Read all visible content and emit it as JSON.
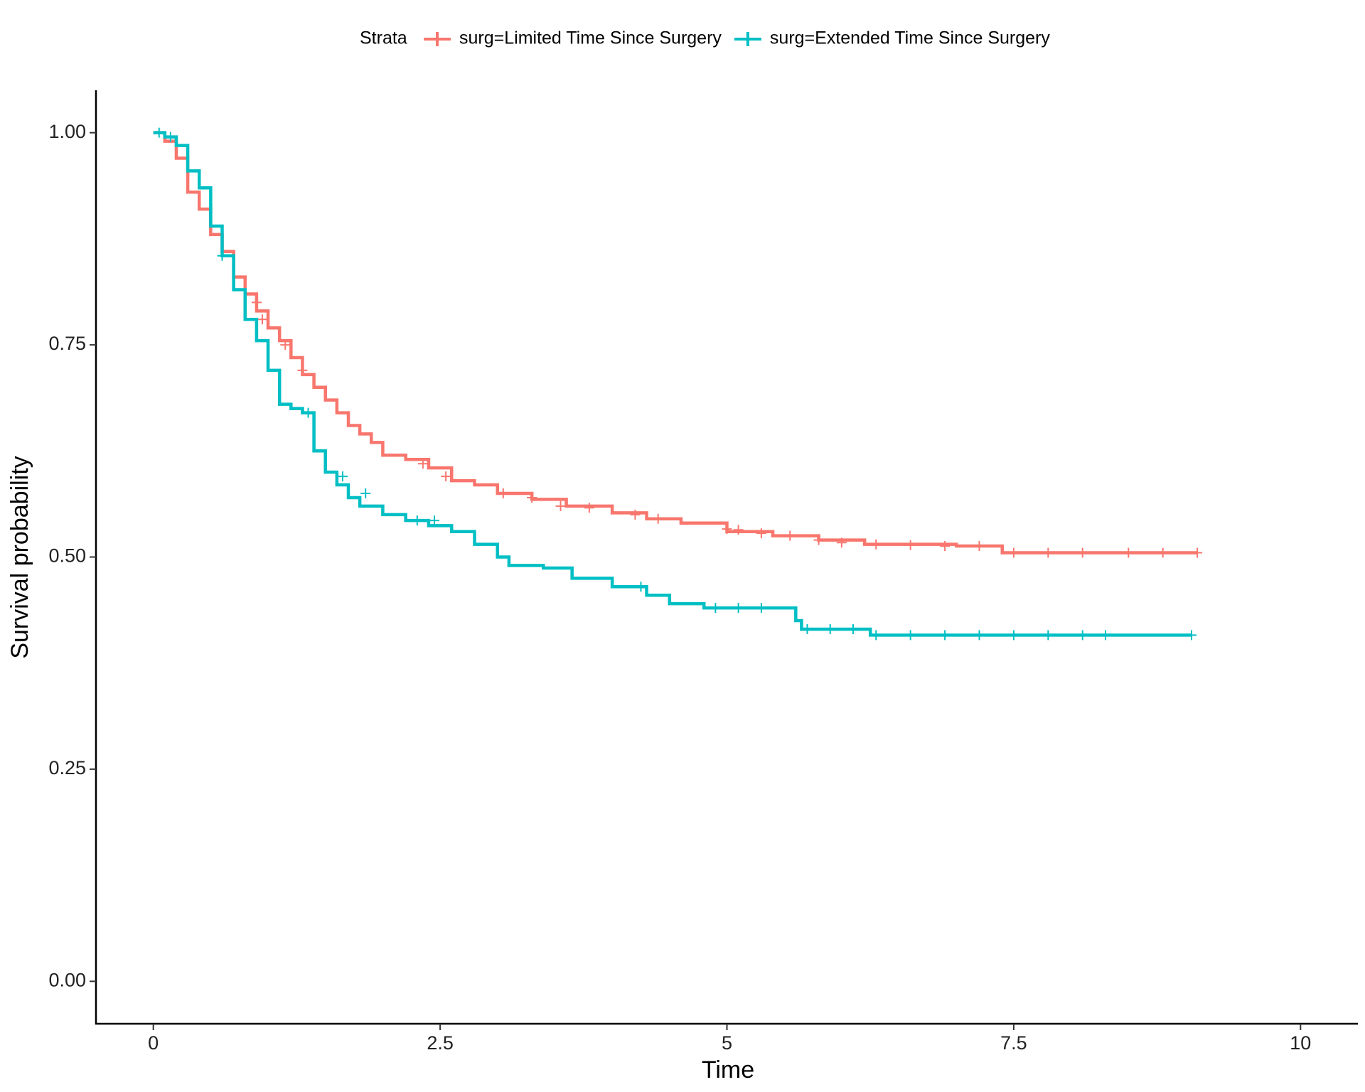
{
  "chart_data": {
    "type": "step",
    "x_label": "Time",
    "y_label": "Survival probability",
    "legend_title": "Strata",
    "legend_position": "top",
    "xlim": [
      -0.5,
      10.5
    ],
    "ylim": [
      -0.05,
      1.05
    ],
    "xticks": [
      0,
      2.5,
      5,
      7.5,
      10
    ],
    "yticks": [
      {
        "value": 0,
        "label": "0.00"
      },
      {
        "value": 0.25,
        "label": "0.25"
      },
      {
        "value": 0.5,
        "label": "0.50"
      },
      {
        "value": 0.75,
        "label": "0.75"
      },
      {
        "value": 1,
        "label": "1.00"
      }
    ],
    "series": [
      {
        "name": "surg=Limited Time Since Surgery",
        "color": "#F8766D",
        "x": [
          0,
          0.1,
          0.2,
          0.3,
          0.4,
          0.5,
          0.6,
          0.7,
          0.8,
          0.9,
          1.0,
          1.1,
          1.2,
          1.3,
          1.4,
          1.5,
          1.6,
          1.7,
          1.8,
          1.9,
          2.0,
          2.2,
          2.4,
          2.6,
          2.8,
          3.0,
          3.3,
          3.6,
          4.0,
          4.3,
          4.6,
          5.0,
          5.4,
          5.8,
          6.2,
          7.0,
          7.4,
          9.1
        ],
        "values": [
          1,
          0.99,
          0.97,
          0.93,
          0.91,
          0.88,
          0.86,
          0.83,
          0.81,
          0.79,
          0.77,
          0.755,
          0.735,
          0.715,
          0.7,
          0.685,
          0.67,
          0.655,
          0.645,
          0.635,
          0.62,
          0.615,
          0.605,
          0.59,
          0.585,
          0.575,
          0.568,
          0.56,
          0.552,
          0.545,
          0.54,
          0.53,
          0.525,
          0.52,
          0.515,
          0.513,
          0.505,
          0.505
        ],
        "censor_x": [
          0.9,
          0.95,
          1.15,
          1.3,
          2.35,
          2.55,
          3.05,
          3.3,
          3.55,
          3.8,
          4.2,
          4.4,
          5.0,
          5.1,
          5.3,
          5.55,
          5.8,
          6.0,
          6.3,
          6.6,
          6.9,
          7.2,
          7.5,
          7.8,
          8.1,
          8.5,
          8.8,
          9.1
        ],
        "censor_values": [
          0.8,
          0.78,
          0.75,
          0.72,
          0.61,
          0.595,
          0.575,
          0.57,
          0.56,
          0.558,
          0.55,
          0.545,
          0.533,
          0.532,
          0.528,
          0.525,
          0.52,
          0.517,
          0.515,
          0.514,
          0.513,
          0.513,
          0.505,
          0.505,
          0.505,
          0.505,
          0.505,
          0.505
        ]
      },
      {
        "name": "surg=Extended Time Since Surgery",
        "color": "#00BFC4",
        "x": [
          0,
          0.1,
          0.2,
          0.3,
          0.4,
          0.5,
          0.6,
          0.7,
          0.8,
          0.9,
          1.0,
          1.1,
          1.2,
          1.3,
          1.4,
          1.5,
          1.6,
          1.7,
          1.8,
          2.0,
          2.2,
          2.4,
          2.6,
          2.8,
          3.0,
          3.1,
          3.4,
          3.65,
          3.95,
          4.0,
          4.3,
          4.5,
          4.8,
          5.5,
          5.6,
          5.65,
          6.25,
          9.05
        ],
        "values": [
          1,
          0.995,
          0.985,
          0.955,
          0.935,
          0.89,
          0.855,
          0.815,
          0.78,
          0.755,
          0.72,
          0.68,
          0.675,
          0.67,
          0.625,
          0.6,
          0.585,
          0.57,
          0.56,
          0.55,
          0.543,
          0.537,
          0.53,
          0.515,
          0.5,
          0.49,
          0.487,
          0.475,
          0.475,
          0.465,
          0.455,
          0.445,
          0.44,
          0.44,
          0.425,
          0.415,
          0.408,
          0.408
        ],
        "censor_x": [
          0.05,
          0.15,
          0.6,
          1.35,
          1.65,
          1.85,
          2.3,
          2.45,
          4.25,
          4.9,
          5.1,
          5.3,
          5.7,
          5.9,
          6.1,
          6.3,
          6.6,
          6.9,
          7.2,
          7.5,
          7.8,
          8.1,
          8.3,
          9.05
        ],
        "censor_values": [
          1,
          0.995,
          0.855,
          0.67,
          0.595,
          0.575,
          0.543,
          0.543,
          0.465,
          0.44,
          0.44,
          0.44,
          0.415,
          0.415,
          0.415,
          0.408,
          0.408,
          0.408,
          0.408,
          0.408,
          0.408,
          0.408,
          0.408,
          0.408
        ]
      }
    ]
  }
}
